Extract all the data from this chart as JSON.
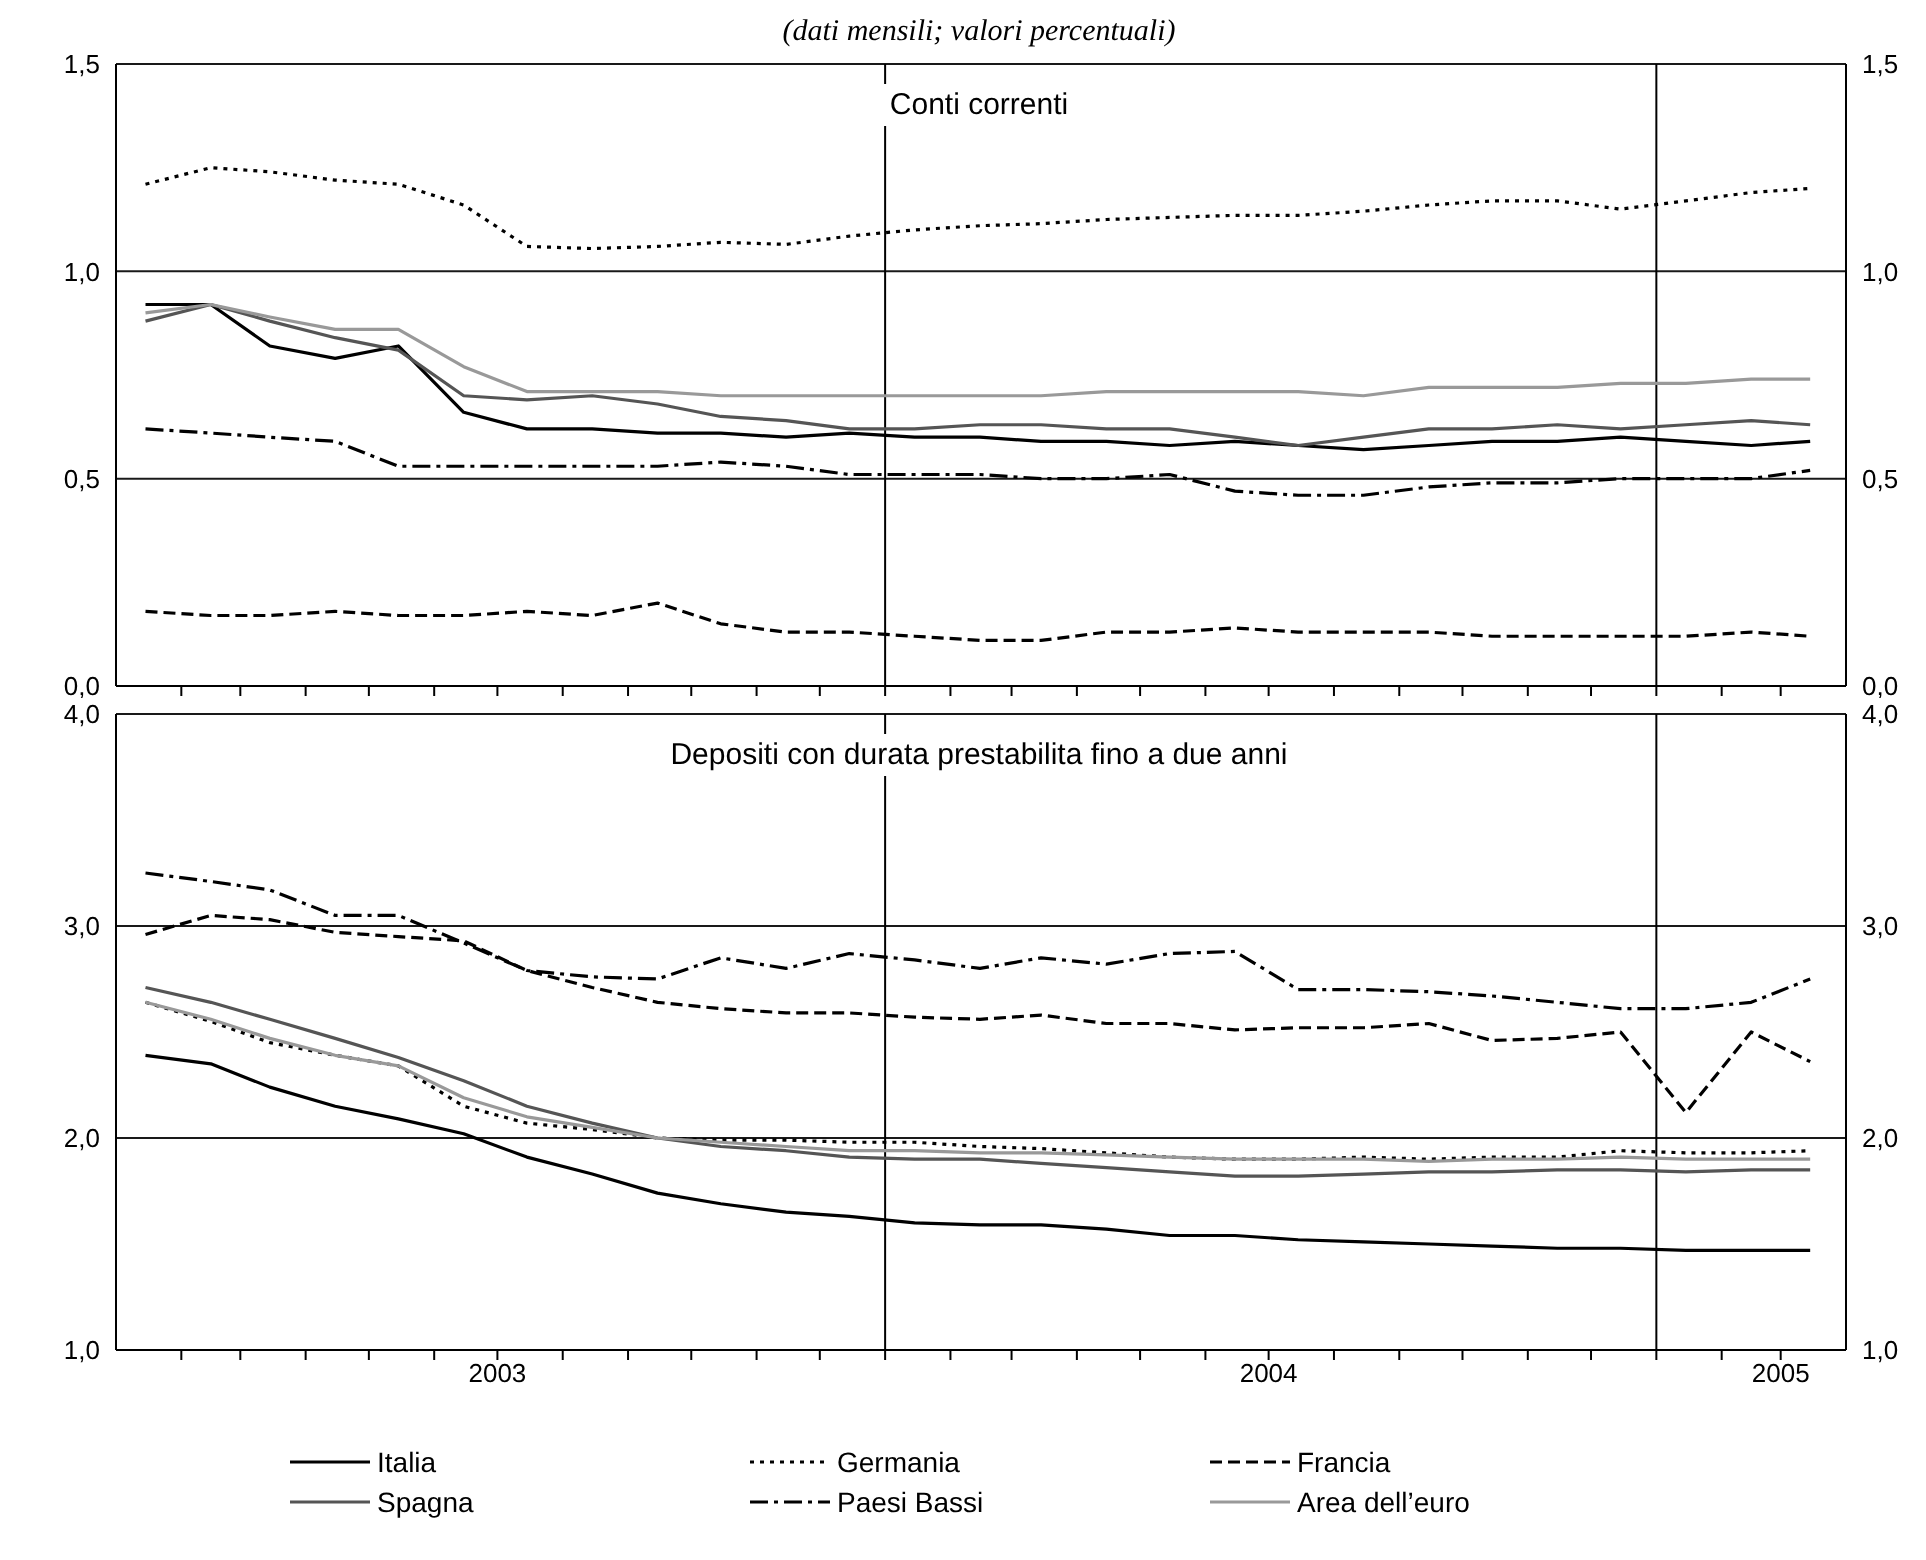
{
  "chart_data": [
    {
      "type": "line",
      "subtitle": "(dati mensili; valori percentuali)",
      "title": "Conti correnti",
      "x": [
        "2003-01-15",
        "2003-02-15",
        "2003-03-15",
        "2003-04-15",
        "2003-05-15",
        "2003-06-15",
        "2003-07-15",
        "2003-08-15",
        "2003-09-15",
        "2003-10-15",
        "2003-11-15",
        "2003-12-15",
        "2004-01-15",
        "2004-02-15",
        "2004-03-15",
        "2004-04-15",
        "2004-05-15",
        "2004-06-15",
        "2004-07-15",
        "2004-08-15",
        "2004-09-15",
        "2004-10-15",
        "2004-11-15",
        "2004-12-15",
        "2005-01-15",
        "2005-02-15",
        "2005-03-15"
      ],
      "series": [
        {
          "color": "#000000",
          "line_style": "solid",
          "values": [
            0.92,
            0.92,
            0.82,
            0.79,
            0.82,
            0.66,
            0.62,
            0.62,
            0.61,
            0.61,
            0.6,
            0.61,
            0.6,
            0.6,
            0.59,
            0.59,
            0.58,
            0.59,
            0.58,
            0.57,
            0.58,
            0.59,
            0.59,
            0.6,
            0.59,
            0.58,
            0.59
          ]
        },
        {
          "color": "#000000",
          "line_style": "dotted",
          "values": [
            1.21,
            1.25,
            1.24,
            1.22,
            1.21,
            1.16,
            1.06,
            1.055,
            1.06,
            1.07,
            1.065,
            1.085,
            1.1,
            1.11,
            1.115,
            1.125,
            1.13,
            1.135,
            1.135,
            1.145,
            1.16,
            1.17,
            1.17,
            1.15,
            1.17,
            1.19,
            1.2
          ]
        },
        {
          "color": "#000000",
          "line_style": "dashed",
          "values": [
            0.18,
            0.17,
            0.17,
            0.18,
            0.17,
            0.17,
            0.18,
            0.17,
            0.2,
            0.15,
            0.13,
            0.13,
            0.12,
            0.11,
            0.11,
            0.13,
            0.13,
            0.14,
            0.13,
            0.13,
            0.13,
            0.12,
            0.12,
            0.12,
            0.12,
            0.13,
            0.12
          ]
        },
        {
          "color": "#555555",
          "line_style": "solid",
          "values": [
            0.88,
            0.92,
            0.88,
            0.84,
            0.81,
            0.7,
            0.69,
            0.7,
            0.68,
            0.65,
            0.64,
            0.62,
            0.62,
            0.63,
            0.63,
            0.62,
            0.62,
            0.6,
            0.58,
            0.6,
            0.62,
            0.62,
            0.63,
            0.62,
            0.63,
            0.64,
            0.63
          ]
        },
        {
          "color": "#000000",
          "line_style": "dashdot",
          "values": [
            0.62,
            0.61,
            0.6,
            0.59,
            0.53,
            0.53,
            0.53,
            0.53,
            0.53,
            0.54,
            0.53,
            0.51,
            0.51,
            0.51,
            0.5,
            0.5,
            0.51,
            0.47,
            0.46,
            0.46,
            0.48,
            0.49,
            0.49,
            0.5,
            0.5,
            0.5,
            0.52
          ]
        },
        {
          "color": "#999999",
          "line_style": "solid",
          "values": [
            0.9,
            0.92,
            0.89,
            0.86,
            0.86,
            0.77,
            0.71,
            0.71,
            0.71,
            0.7,
            0.7,
            0.7,
            0.7,
            0.7,
            0.7,
            0.71,
            0.71,
            0.71,
            0.71,
            0.7,
            0.72,
            0.72,
            0.72,
            0.73,
            0.73,
            0.74,
            0.74
          ]
        }
      ],
      "xlim": [
        "2003-01-01",
        "2005-04-01"
      ],
      "xticks": [
        {
          "value": "2003-02-01",
          "label": null
        },
        {
          "value": "2003-03-01",
          "label": null
        },
        {
          "value": "2003-04-01",
          "label": null
        },
        {
          "value": "2003-05-01",
          "label": null
        },
        {
          "value": "2003-06-01",
          "label": null
        },
        {
          "value": "2003-07-01",
          "label": null
        },
        {
          "value": "2003-08-01",
          "label": null
        },
        {
          "value": "2003-09-01",
          "label": null
        },
        {
          "value": "2003-10-01",
          "label": null
        },
        {
          "value": "2003-11-01",
          "label": null
        },
        {
          "value": "2003-12-01",
          "label": null
        },
        {
          "value": "2004-01-01",
          "label": null
        },
        {
          "value": "2004-02-01",
          "label": null
        },
        {
          "value": "2004-03-01",
          "label": null
        },
        {
          "value": "2004-04-01",
          "label": null
        },
        {
          "value": "2004-05-01",
          "label": null
        },
        {
          "value": "2004-06-01",
          "label": null
        },
        {
          "value": "2004-07-01",
          "label": null
        },
        {
          "value": "2004-08-01",
          "label": null
        },
        {
          "value": "2004-09-01",
          "label": null
        },
        {
          "value": "2004-10-01",
          "label": null
        },
        {
          "value": "2004-11-01",
          "label": null
        },
        {
          "value": "2004-12-01",
          "label": null
        },
        {
          "value": "2005-01-01",
          "label": null
        },
        {
          "value": "2005-02-01",
          "label": null
        },
        {
          "value": "2005-03-01",
          "label": null
        }
      ],
      "ylim": [
        0,
        1.5
      ],
      "yticks": [
        {
          "value": 0,
          "label": "0,0"
        },
        {
          "value": 0.5,
          "label": "0,5"
        },
        {
          "value": 1,
          "label": "1,0"
        },
        {
          "value": 1.5,
          "label": "1,5"
        }
      ],
      "y2lim": [
        0,
        1.5
      ],
      "y2ticks": [
        {
          "value": 0,
          "label": "0,0"
        },
        {
          "value": 0.5,
          "label": "0,5"
        },
        {
          "value": 1,
          "label": "1,0"
        },
        {
          "value": 1.5,
          "label": "1,5"
        }
      ],
      "ref_lines": [
        {
          "axis": "x",
          "value": "2004-01-01",
          "color": "#000000"
        },
        {
          "axis": "x",
          "value": "2005-01-01",
          "color": "#000000"
        }
      ],
      "grid": "y",
      "tick_labels": "y"
    },
    {
      "type": "line",
      "title": "Depositi con durata prestabilita fino a due anni",
      "x": [
        "2003-01-15",
        "2003-02-15",
        "2003-03-15",
        "2003-04-15",
        "2003-05-15",
        "2003-06-15",
        "2003-07-15",
        "2003-08-15",
        "2003-09-15",
        "2003-10-15",
        "2003-11-15",
        "2003-12-15",
        "2004-01-15",
        "2004-02-15",
        "2004-03-15",
        "2004-04-15",
        "2004-05-15",
        "2004-06-15",
        "2004-07-15",
        "2004-08-15",
        "2004-09-15",
        "2004-10-15",
        "2004-11-15",
        "2004-12-15",
        "2005-01-15",
        "2005-02-15",
        "2005-03-15"
      ],
      "series": [
        {
          "name": "Italia",
          "color": "#000000",
          "line_style": "solid",
          "values": [
            2.39,
            2.35,
            2.24,
            2.15,
            2.09,
            2.02,
            1.91,
            1.83,
            1.74,
            1.69,
            1.65,
            1.63,
            1.6,
            1.59,
            1.59,
            1.57,
            1.54,
            1.54,
            1.52,
            1.51,
            1.5,
            1.49,
            1.48,
            1.48,
            1.47,
            1.47,
            1.47
          ]
        },
        {
          "name": "Germania",
          "color": "#000000",
          "line_style": "dotted",
          "values": [
            2.64,
            2.55,
            2.45,
            2.39,
            2.34,
            2.15,
            2.07,
            2.04,
            2.0,
            1.99,
            1.99,
            1.98,
            1.98,
            1.96,
            1.95,
            1.93,
            1.91,
            1.9,
            1.9,
            1.91,
            1.9,
            1.91,
            1.91,
            1.94,
            1.93,
            1.93,
            1.94
          ]
        },
        {
          "name": "Francia",
          "color": "#000000",
          "line_style": "dashed",
          "values": [
            2.96,
            3.05,
            3.03,
            2.97,
            2.95,
            2.93,
            2.79,
            2.71,
            2.64,
            2.61,
            2.59,
            2.59,
            2.57,
            2.56,
            2.58,
            2.54,
            2.54,
            2.51,
            2.52,
            2.52,
            2.54,
            2.46,
            2.47,
            2.5,
            2.12,
            2.5,
            2.36
          ]
        },
        {
          "name": "Spagna",
          "color": "#555555",
          "line_style": "solid",
          "values": [
            2.71,
            2.64,
            2.56,
            2.47,
            2.38,
            2.27,
            2.15,
            2.07,
            2.0,
            1.96,
            1.94,
            1.91,
            1.9,
            1.9,
            1.88,
            1.86,
            1.84,
            1.82,
            1.82,
            1.83,
            1.84,
            1.84,
            1.85,
            1.85,
            1.84,
            1.85,
            1.85
          ]
        },
        {
          "name": "Paesi Bassi",
          "color": "#000000",
          "line_style": "dashdot",
          "values": [
            3.25,
            3.21,
            3.17,
            3.05,
            3.05,
            2.92,
            2.79,
            2.76,
            2.75,
            2.85,
            2.8,
            2.87,
            2.84,
            2.8,
            2.85,
            2.82,
            2.87,
            2.88,
            2.7,
            2.7,
            2.69,
            2.67,
            2.64,
            2.61,
            2.61,
            2.64,
            2.75
          ]
        },
        {
          "name": "Area dell’euro",
          "color": "#999999",
          "line_style": "solid",
          "values": [
            2.64,
            2.56,
            2.47,
            2.39,
            2.34,
            2.19,
            2.1,
            2.05,
            2.0,
            1.98,
            1.96,
            1.94,
            1.94,
            1.93,
            1.93,
            1.92,
            1.91,
            1.9,
            1.9,
            1.9,
            1.89,
            1.9,
            1.9,
            1.91,
            1.9,
            1.9,
            1.9
          ]
        }
      ],
      "xlim": [
        "2003-01-01",
        "2005-04-01"
      ],
      "xticks": [
        {
          "value": "2003-02-01",
          "label": null
        },
        {
          "value": "2003-03-01",
          "label": null
        },
        {
          "value": "2003-04-01",
          "label": null
        },
        {
          "value": "2003-05-01",
          "label": null
        },
        {
          "value": "2003-06-01",
          "label": null
        },
        {
          "value": "2003-07-01",
          "label": "2003"
        },
        {
          "value": "2003-08-01",
          "label": null
        },
        {
          "value": "2003-09-01",
          "label": null
        },
        {
          "value": "2003-10-01",
          "label": null
        },
        {
          "value": "2003-11-01",
          "label": null
        },
        {
          "value": "2003-12-01",
          "label": null
        },
        {
          "value": "2004-01-01",
          "label": null
        },
        {
          "value": "2004-02-01",
          "label": null
        },
        {
          "value": "2004-03-01",
          "label": null
        },
        {
          "value": "2004-04-01",
          "label": null
        },
        {
          "value": "2004-05-01",
          "label": null
        },
        {
          "value": "2004-06-01",
          "label": null
        },
        {
          "value": "2004-07-01",
          "label": "2004"
        },
        {
          "value": "2004-08-01",
          "label": null
        },
        {
          "value": "2004-09-01",
          "label": null
        },
        {
          "value": "2004-10-01",
          "label": null
        },
        {
          "value": "2004-11-01",
          "label": null
        },
        {
          "value": "2004-12-01",
          "label": null
        },
        {
          "value": "2005-01-01",
          "label": null
        },
        {
          "value": "2005-02-01",
          "label": null
        },
        {
          "value": "2005-03-01",
          "label": "2005"
        }
      ],
      "ylim": [
        1,
        4
      ],
      "yticks": [
        {
          "value": 1,
          "label": "1,0"
        },
        {
          "value": 2,
          "label": "2,0"
        },
        {
          "value": 3,
          "label": "3,0"
        },
        {
          "value": 4,
          "label": "4,0"
        }
      ],
      "y2lim": [
        1,
        4
      ],
      "y2ticks": [
        {
          "value": 1,
          "label": "1,0"
        },
        {
          "value": 2,
          "label": "2,0"
        },
        {
          "value": 3,
          "label": "3,0"
        },
        {
          "value": 4,
          "label": "4,0"
        }
      ],
      "ref_lines": [
        {
          "axis": "x",
          "value": "2004-01-01",
          "color": "#000000"
        },
        {
          "axis": "x",
          "value": "2005-01-01",
          "color": "#000000"
        }
      ],
      "grid": "y",
      "legend": "bottom"
    }
  ]
}
